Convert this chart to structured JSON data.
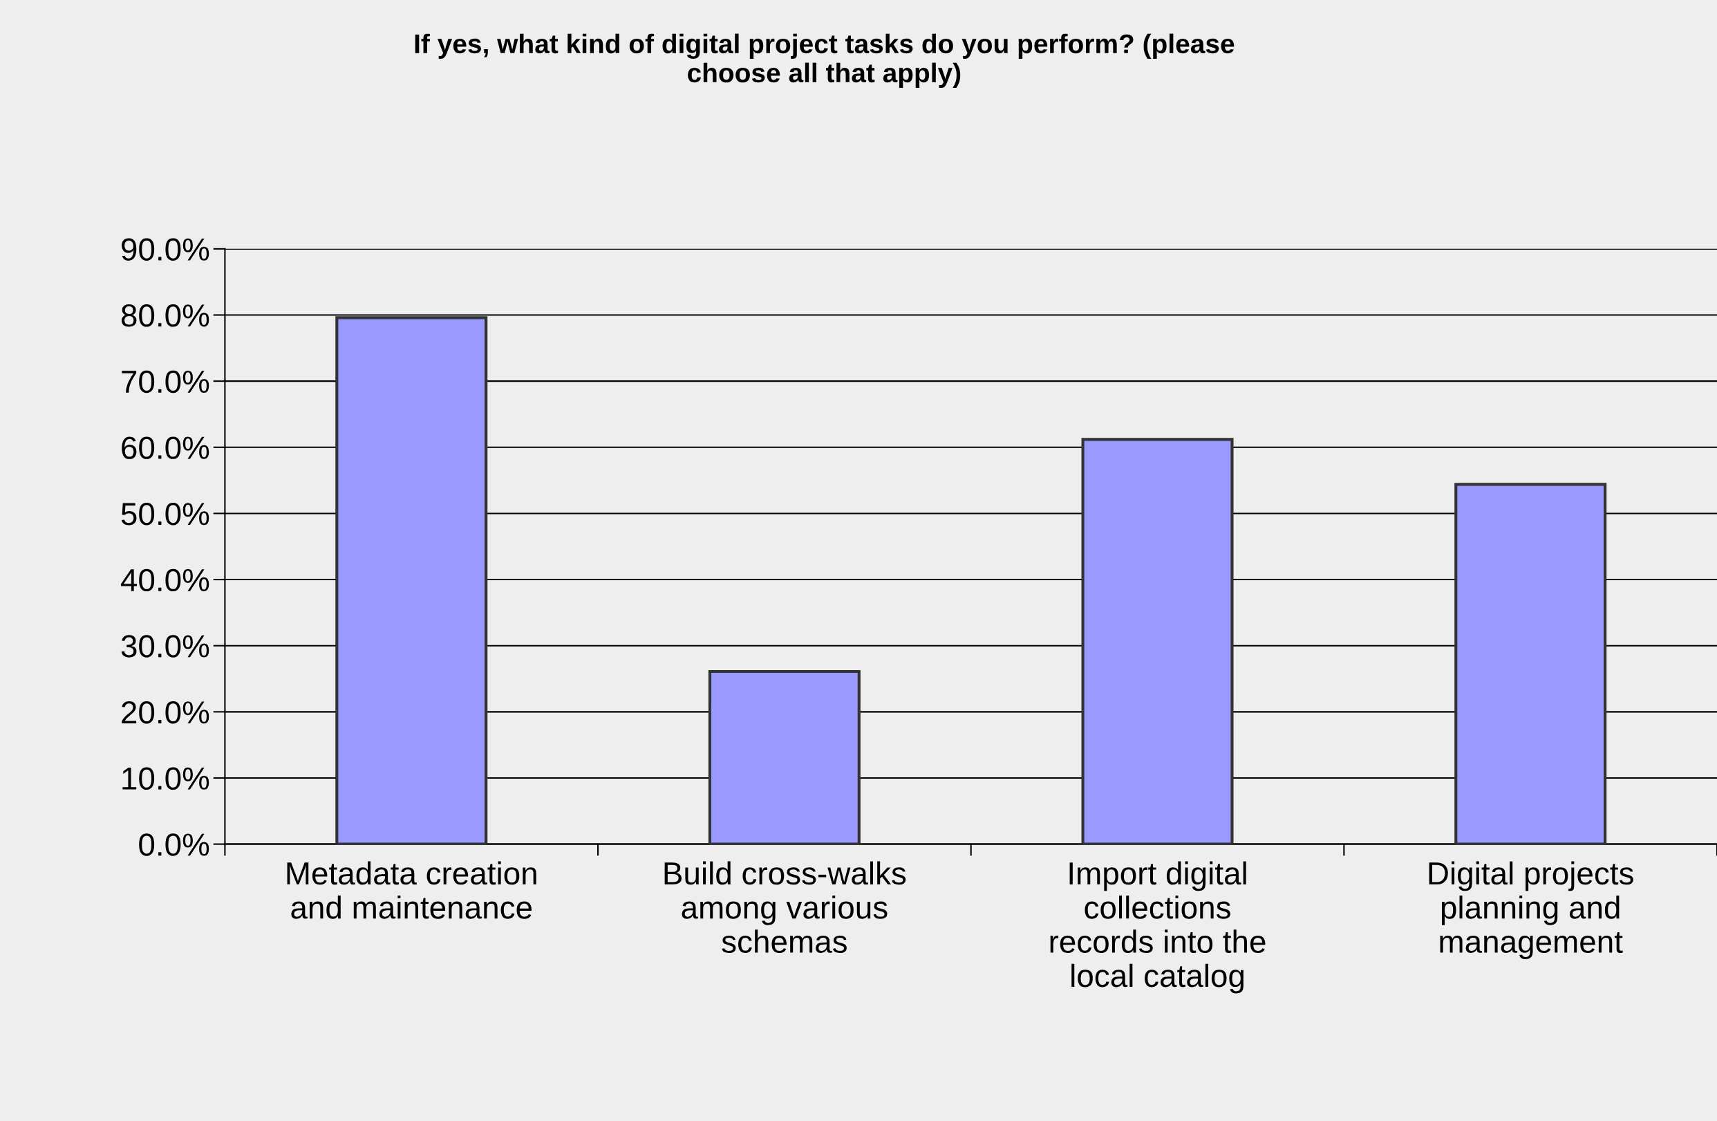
{
  "chart_data": {
    "type": "bar",
    "title": "If yes, what kind of digital project tasks do you perform? (please\nchoose all that apply)",
    "categories": [
      "Metadata creation\nand maintenance",
      "Build cross-walks\namong various\nschemas",
      "Import digital\ncollections\nrecords into the\nlocal catalog",
      "Digital projects\nplanning and\nmanagement"
    ],
    "values": [
      79.6,
      26.1,
      61.2,
      54.4
    ],
    "color": "#9999ff",
    "ylim": [
      0,
      90
    ],
    "yticks": [
      {
        "value": 0,
        "label": "0.0%"
      },
      {
        "value": 10,
        "label": "10.0%"
      },
      {
        "value": 20,
        "label": "20.0%"
      },
      {
        "value": 30,
        "label": "30.0%"
      },
      {
        "value": 40,
        "label": "40.0%"
      },
      {
        "value": 50,
        "label": "50.0%"
      },
      {
        "value": 60,
        "label": "60.0%"
      },
      {
        "value": 70,
        "label": "70.0%"
      },
      {
        "value": 80,
        "label": "80.0%"
      },
      {
        "value": 90,
        "label": "90.0%"
      }
    ],
    "grid": "y",
    "legend": false
  }
}
